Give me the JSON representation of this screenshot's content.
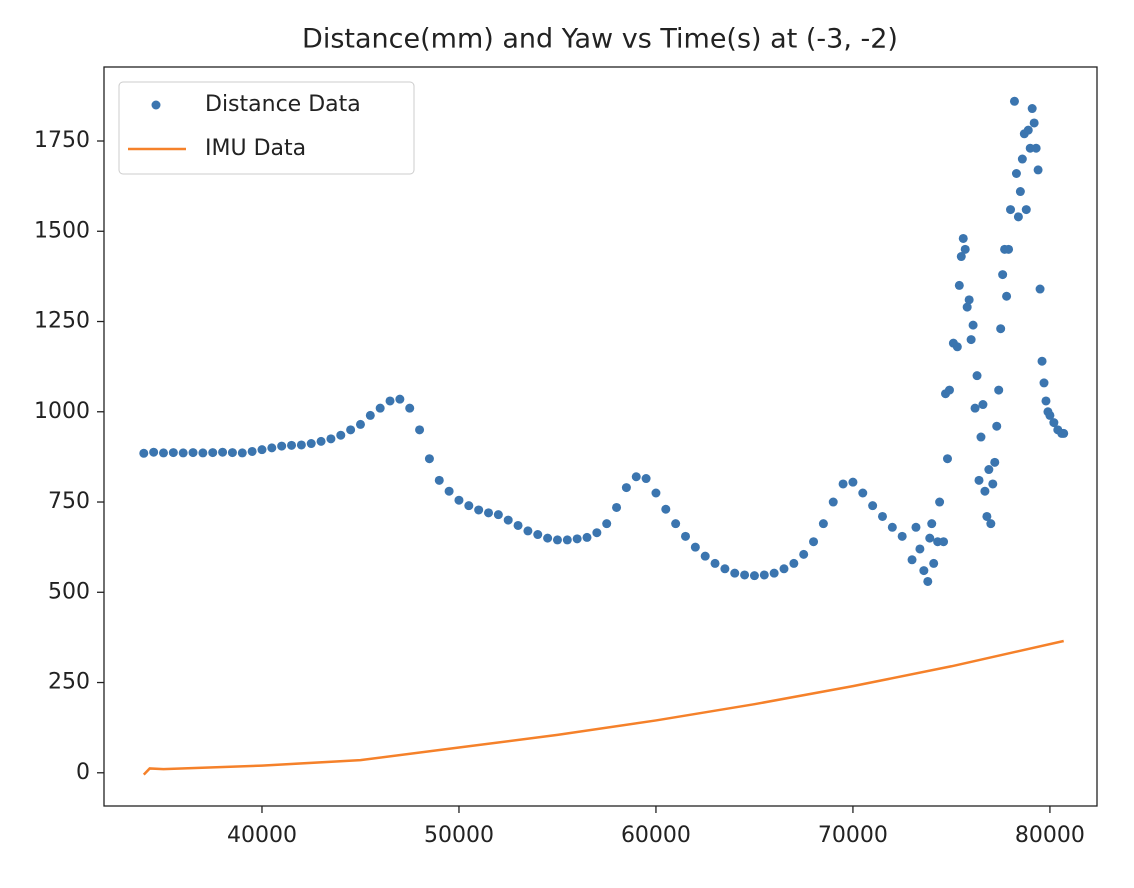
{
  "chart_data": {
    "type": "line",
    "title": "Distance(mm) and Yaw vs Time(s) at (-3, -2)",
    "xlim": [
      31980,
      82390
    ],
    "ylim": [
      -92,
      1955
    ],
    "xticks": [
      40000,
      50000,
      60000,
      70000,
      80000
    ],
    "yticks": [
      0,
      250,
      500,
      750,
      1000,
      1250,
      1500,
      1750
    ],
    "grid": false,
    "legend": "upper left",
    "series": [
      {
        "name": "Distance Data",
        "color": "#3b75af",
        "style": "marker",
        "x": [
          34000,
          34500,
          35000,
          35500,
          36000,
          36500,
          37000,
          37500,
          38000,
          38500,
          39000,
          39500,
          40000,
          40500,
          41000,
          41500,
          42000,
          42500,
          43000,
          43500,
          44000,
          44500,
          45000,
          45500,
          46000,
          46500,
          47000,
          47500,
          48000,
          48500,
          49000,
          49500,
          50000,
          50500,
          51000,
          51500,
          52000,
          52500,
          53000,
          53500,
          54000,
          54500,
          55000,
          55500,
          56000,
          56500,
          57000,
          57500,
          58000,
          58500,
          59000,
          59500,
          60000,
          60500,
          61000,
          61500,
          62000,
          62500,
          63000,
          63500,
          64000,
          64500,
          65000,
          65500,
          66000,
          66500,
          67000,
          67500,
          68000,
          68500,
          69000,
          69500,
          70000,
          70500,
          71000,
          71500,
          72000,
          72500,
          73000,
          73200,
          73400,
          73600,
          73800,
          73900,
          74000,
          74100,
          74300,
          74400,
          74600,
          74700,
          74800,
          74900,
          75100,
          75300,
          75400,
          75500,
          75600,
          75700,
          75800,
          75900,
          76000,
          76100,
          76200,
          76300,
          76400,
          76500,
          76600,
          76700,
          76800,
          76900,
          77000,
          77100,
          77200,
          77300,
          77400,
          77500,
          77600,
          77700,
          77800,
          77900,
          78000,
          78200,
          78300,
          78400,
          78500,
          78600,
          78700,
          78800,
          78900,
          79000,
          79100,
          79200,
          79300,
          79400,
          79500,
          79600,
          79700,
          79800,
          79900,
          80000,
          80200,
          80400,
          80600,
          80700
        ],
        "values": [
          885,
          888,
          886,
          887,
          886,
          887,
          886,
          887,
          888,
          887,
          886,
          890,
          895,
          900,
          905,
          907,
          908,
          912,
          918,
          925,
          935,
          950,
          965,
          990,
          1010,
          1030,
          1035,
          1010,
          950,
          870,
          810,
          780,
          755,
          740,
          728,
          720,
          715,
          700,
          685,
          670,
          660,
          650,
          645,
          645,
          648,
          652,
          665,
          690,
          735,
          790,
          820,
          815,
          775,
          730,
          690,
          655,
          625,
          600,
          580,
          565,
          553,
          548,
          546,
          548,
          553,
          565,
          580,
          605,
          640,
          690,
          750,
          800,
          805,
          775,
          740,
          710,
          680,
          655,
          590,
          680,
          620,
          560,
          530,
          650,
          690,
          580,
          640,
          750,
          640,
          1050,
          870,
          1060,
          1190,
          1180,
          1350,
          1430,
          1480,
          1450,
          1290,
          1310,
          1200,
          1240,
          1010,
          1100,
          810,
          930,
          1020,
          780,
          710,
          840,
          690,
          800,
          860,
          960,
          1060,
          1230,
          1380,
          1450,
          1320,
          1450,
          1560,
          1860,
          1660,
          1540,
          1610,
          1700,
          1770,
          1560,
          1780,
          1730,
          1840,
          1800,
          1730,
          1670,
          1340,
          1140,
          1080,
          1030,
          1000,
          990,
          970,
          950,
          940,
          940
        ]
      },
      {
        "name": "IMU Data",
        "color": "#f5812a",
        "style": "line",
        "x": [
          34000,
          34300,
          35000,
          40000,
          45000,
          50000,
          55000,
          60000,
          65000,
          70000,
          75000,
          80700
        ],
        "values": [
          -5,
          12,
          10,
          20,
          35,
          70,
          105,
          145,
          190,
          240,
          295,
          365
        ]
      }
    ]
  }
}
